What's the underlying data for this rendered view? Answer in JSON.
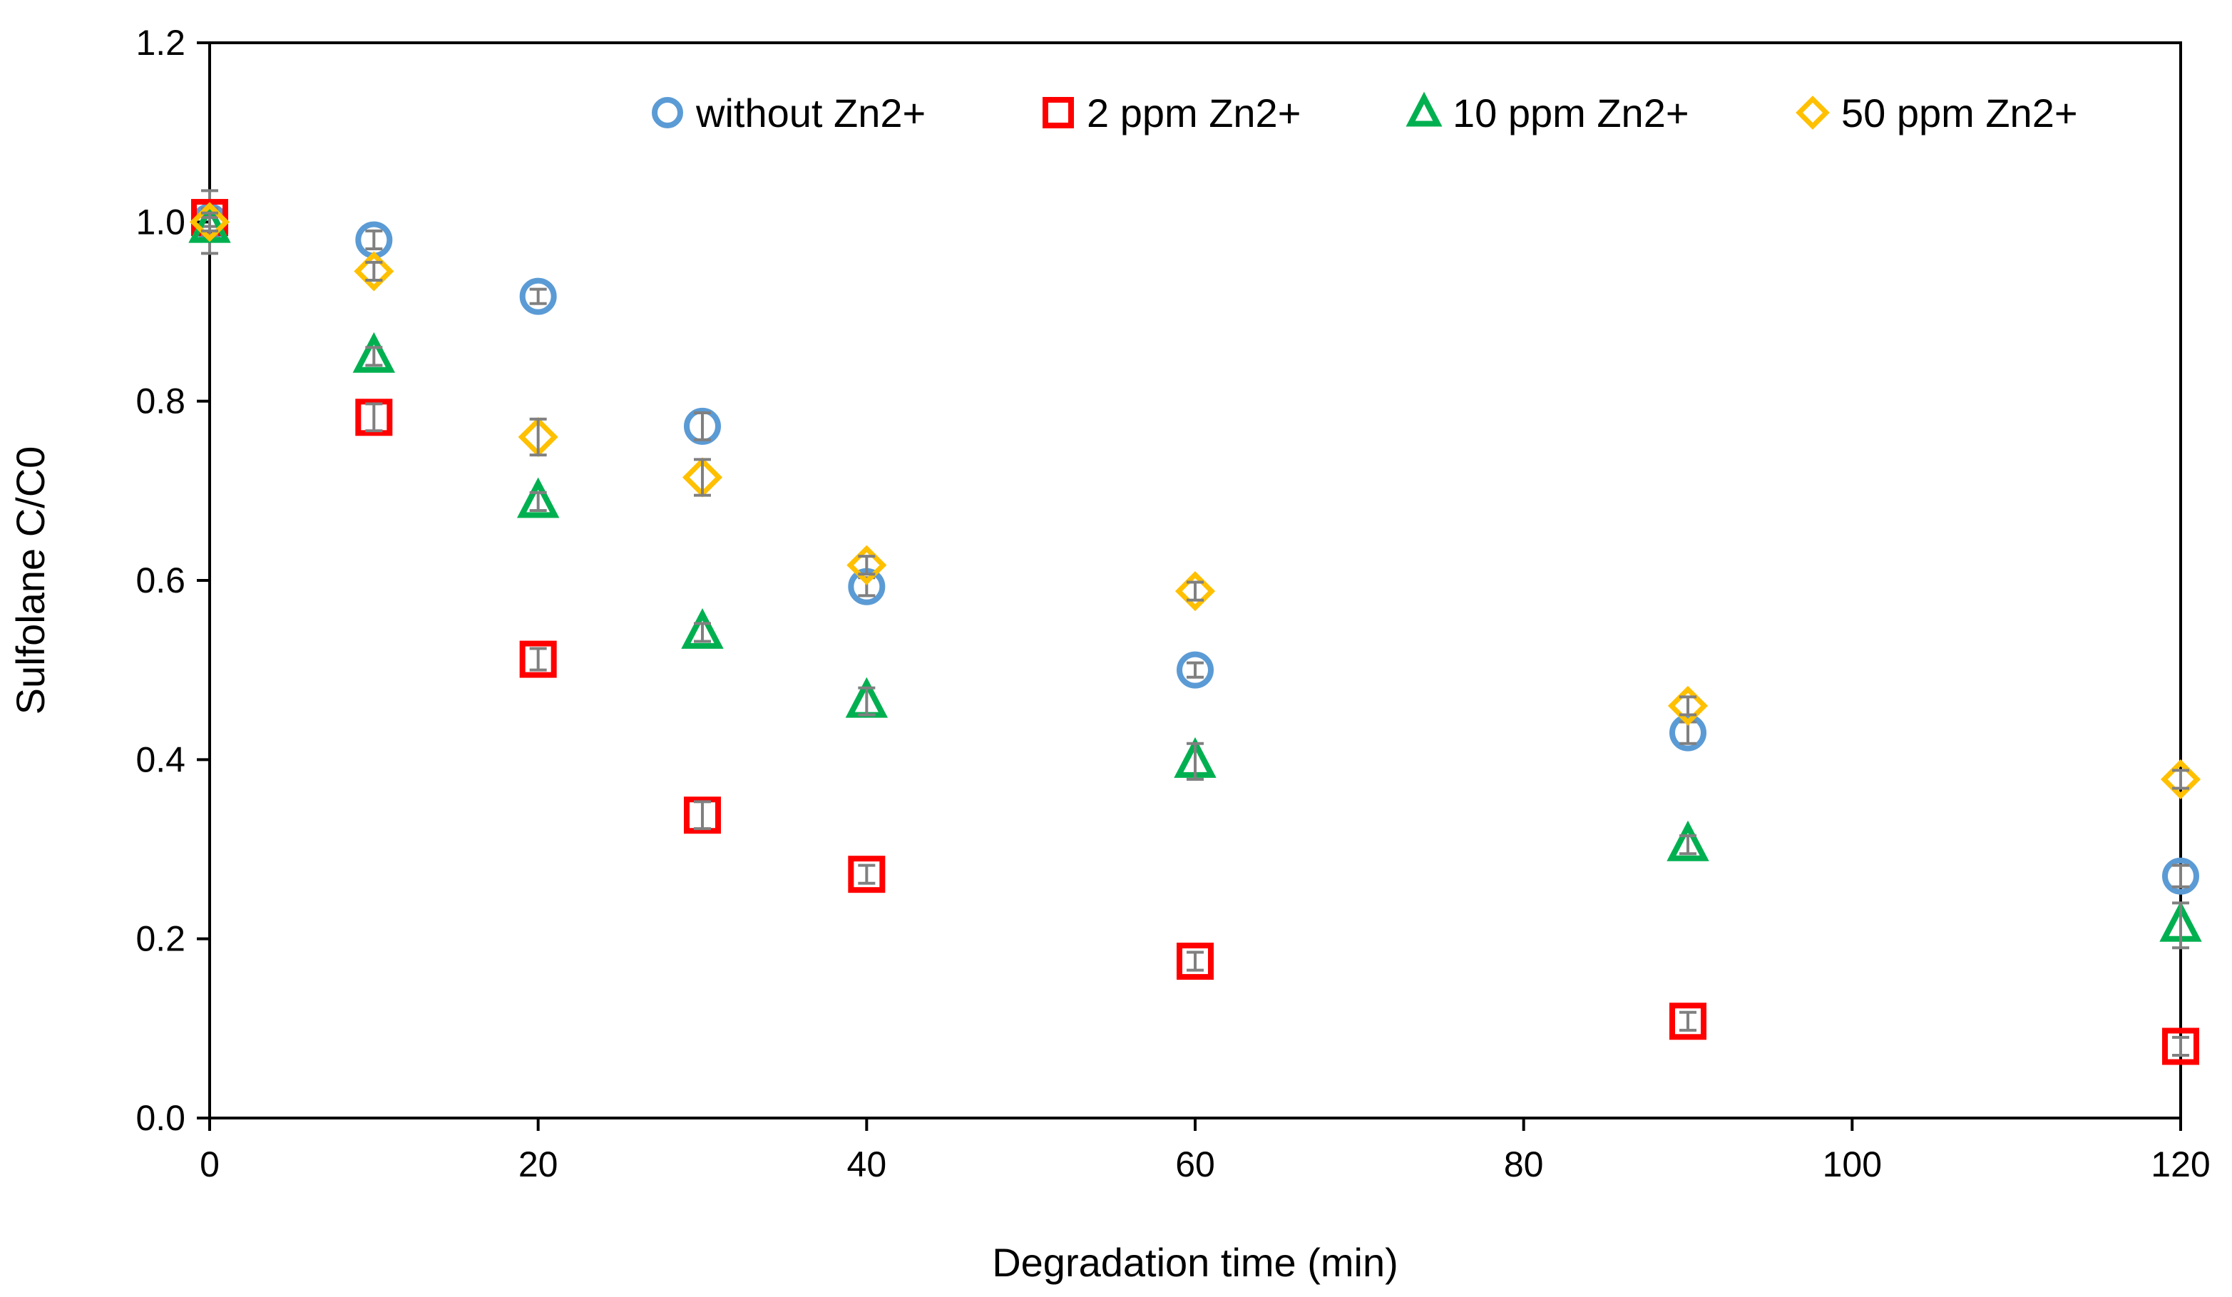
{
  "chart_data": {
    "type": "scatter",
    "title": "",
    "xlabel": "Degradation time (min)",
    "ylabel": "Sulfolane C/C0",
    "xlim": [
      0,
      120
    ],
    "ylim": [
      0,
      1.2
    ],
    "xticks": [
      0,
      20,
      40,
      60,
      80,
      100,
      120
    ],
    "yticks": [
      0.0,
      0.2,
      0.4,
      0.6,
      0.8,
      1.0,
      1.2
    ],
    "xtick_labels": [
      "0",
      "20",
      "40",
      "60",
      "80",
      "100",
      "120"
    ],
    "ytick_labels": [
      "0.0",
      "0.2",
      "0.4",
      "0.6",
      "0.8",
      "1.0",
      "1.2"
    ],
    "grid": false,
    "legend_position": "top-right",
    "series": [
      {
        "name": "without Zn2+",
        "marker": "circle",
        "color": "#5B9BD5",
        "x": [
          0,
          10,
          20,
          30,
          40,
          60,
          90,
          120
        ],
        "y": [
          1.0,
          0.98,
          0.917,
          0.772,
          0.593,
          0.5,
          0.43,
          0.27
        ],
        "err": [
          0.035,
          0.01,
          0.008,
          0.015,
          0.01,
          0.008,
          0.012,
          0.012
        ]
      },
      {
        "name": "2 ppm Zn2+",
        "marker": "square",
        "color": "#FF0000",
        "x": [
          0,
          10,
          20,
          30,
          40,
          60,
          90,
          120
        ],
        "y": [
          1.005,
          0.782,
          0.512,
          0.338,
          0.272,
          0.175,
          0.108,
          0.08
        ],
        "err": [
          0.01,
          0.015,
          0.012,
          0.015,
          0.01,
          0.01,
          0.01,
          0.01
        ]
      },
      {
        "name": "10 ppm Zn2+",
        "marker": "triangle",
        "color": "#00B050",
        "x": [
          0,
          10,
          20,
          30,
          40,
          60,
          90,
          120
        ],
        "y": [
          0.995,
          0.85,
          0.688,
          0.542,
          0.465,
          0.398,
          0.305,
          0.215
        ],
        "err": [
          0.01,
          0.01,
          0.01,
          0.01,
          0.015,
          0.02,
          0.01,
          0.025
        ]
      },
      {
        "name": "50 ppm Zn2+",
        "marker": "diamond",
        "color": "#FFC000",
        "x": [
          0,
          10,
          20,
          30,
          40,
          60,
          90,
          120
        ],
        "y": [
          1.0,
          0.945,
          0.76,
          0.715,
          0.617,
          0.588,
          0.46,
          0.378
        ],
        "err": [
          0.01,
          0.01,
          0.02,
          0.02,
          0.01,
          0.01,
          0.01,
          0.01
        ]
      }
    ]
  }
}
